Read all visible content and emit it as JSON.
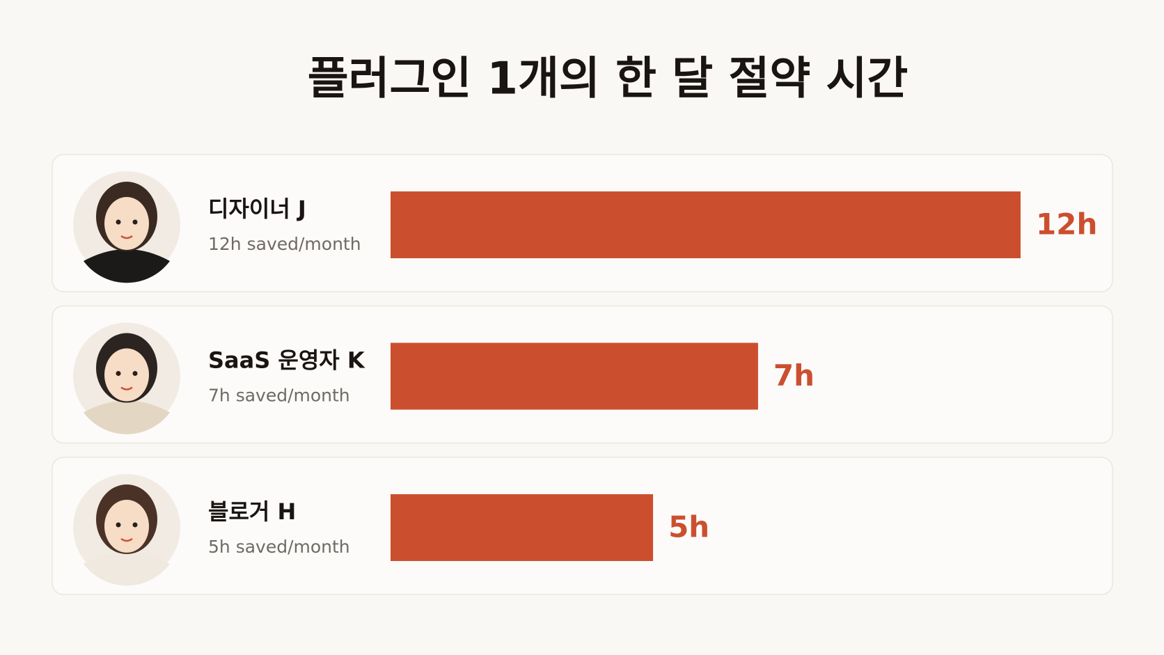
{
  "chart_data": {
    "type": "bar",
    "orientation": "horizontal",
    "title": "플러그인 1개의 한 달 절약 시간",
    "categories": [
      "디자이너 J",
      "SaaS 운영자 K",
      "블로거 H"
    ],
    "descriptions": [
      "12h saved/month",
      "7h saved/month",
      "5h saved/month"
    ],
    "values": [
      12,
      7,
      5
    ],
    "value_labels": [
      "12h",
      "7h",
      "5h"
    ],
    "color": "#cb4f2f"
  }
}
